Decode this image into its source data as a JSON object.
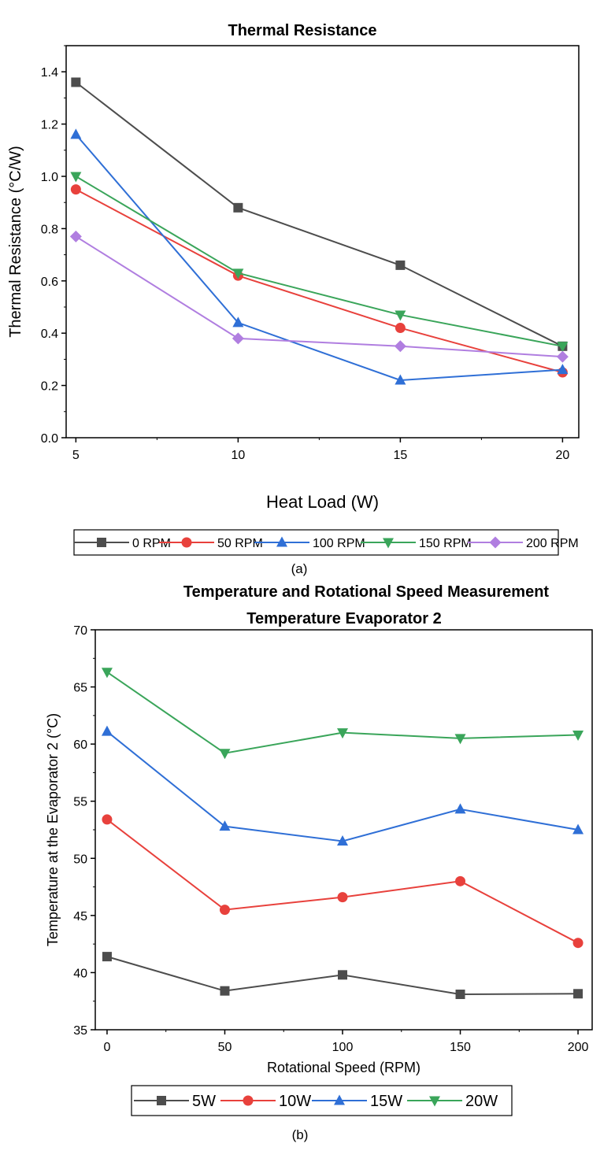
{
  "chart_data": [
    {
      "type": "line",
      "title": "Thermal Resistance",
      "xlabel": "Heat Load (W)",
      "ylabel": "Thermal Resistance (°C/W)",
      "x": [
        5,
        10,
        15,
        20
      ],
      "xlim": [
        4.7,
        20.5
      ],
      "ylim": [
        0,
        1.5
      ],
      "xticks": [
        "5",
        "10",
        "15",
        "20"
      ],
      "yticks": [
        "0.0",
        "0.2",
        "0.4",
        "0.6",
        "0.8",
        "1.0",
        "1.2",
        "1.4"
      ],
      "legend_position": "bottom",
      "caption": "(a)",
      "series": [
        {
          "name": "0 RPM",
          "color": "#4d4d4d",
          "marker": "square",
          "values": [
            1.36,
            0.88,
            0.66,
            0.35
          ]
        },
        {
          "name": "50 RPM",
          "color": "#e8413c",
          "marker": "circle",
          "values": [
            0.95,
            0.62,
            0.42,
            0.25
          ]
        },
        {
          "name": "100 RPM",
          "color": "#2f6fd6",
          "marker": "triangle-up",
          "values": [
            1.16,
            0.44,
            0.22,
            0.26
          ]
        },
        {
          "name": "150 RPM",
          "color": "#3aa55a",
          "marker": "triangle-down",
          "values": [
            1.0,
            0.63,
            0.47,
            0.35
          ]
        },
        {
          "name": "200 RPM",
          "color": "#b07ee0",
          "marker": "diamond",
          "values": [
            0.77,
            0.38,
            0.35,
            0.31
          ]
        }
      ]
    },
    {
      "type": "line",
      "title": "Temperature and Rotational Speed Measurement",
      "subtitle": "Temperature Evaporator 2",
      "xlabel": "Rotational Speed (RPM)",
      "ylabel": "Temperature at the Evaporator 2 (°C)",
      "x": [
        0,
        50,
        100,
        150,
        200
      ],
      "xlim": [
        -5,
        206
      ],
      "ylim": [
        35,
        70
      ],
      "xticks": [
        "0",
        "50",
        "100",
        "150",
        "200"
      ],
      "yticks": [
        "35",
        "40",
        "45",
        "50",
        "55",
        "60",
        "65",
        "70"
      ],
      "legend_position": "bottom",
      "caption": "(b)",
      "series": [
        {
          "name": "5W",
          "color": "#4d4d4d",
          "marker": "square",
          "values": [
            41.4,
            38.4,
            39.8,
            38.1,
            38.15
          ]
        },
        {
          "name": "10W",
          "color": "#e8413c",
          "marker": "circle",
          "values": [
            53.4,
            45.5,
            46.6,
            48.0,
            42.6
          ]
        },
        {
          "name": "15W",
          "color": "#2f6fd6",
          "marker": "triangle-up",
          "values": [
            61.1,
            52.8,
            51.5,
            54.3,
            52.5
          ]
        },
        {
          "name": "20W",
          "color": "#3aa55a",
          "marker": "triangle-down",
          "values": [
            66.3,
            59.2,
            61.0,
            60.5,
            60.8
          ]
        }
      ]
    }
  ]
}
